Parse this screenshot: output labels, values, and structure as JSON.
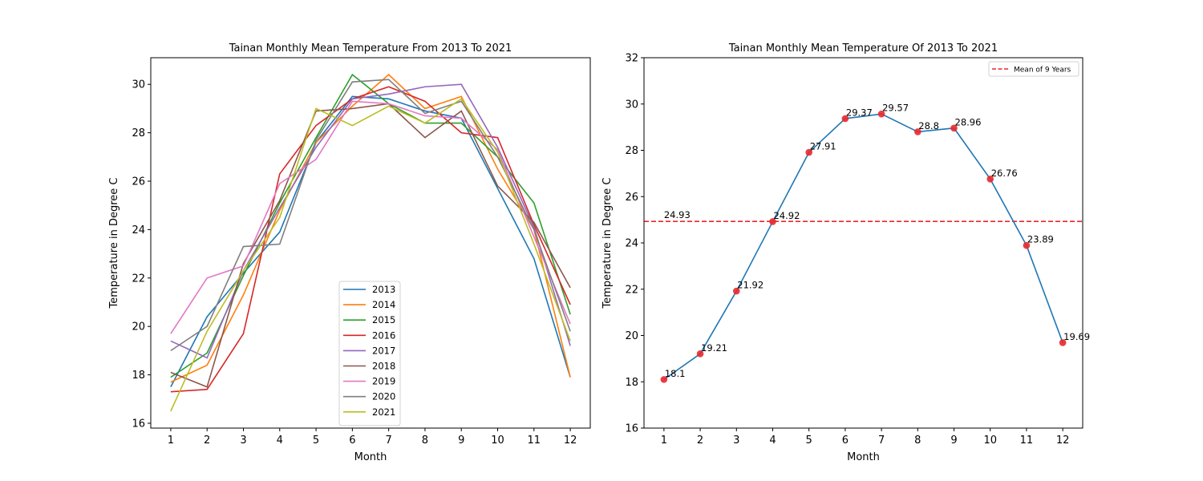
{
  "chart_data": [
    {
      "type": "line",
      "title": "Tainan Monthly Mean Temperature From 2013 To 2021",
      "xlabel": "Month",
      "ylabel": "Temperature in Degree C",
      "xlim": [
        0.45,
        12.55
      ],
      "ylim": [
        15.8,
        31.1
      ],
      "xticks": [
        1,
        2,
        3,
        4,
        5,
        6,
        7,
        8,
        9,
        10,
        11,
        12
      ],
      "yticks": [
        16,
        18,
        20,
        22,
        24,
        26,
        28,
        30
      ],
      "legend": "lower-center",
      "grid": false,
      "x": [
        1,
        2,
        3,
        4,
        5,
        6,
        7,
        8,
        9,
        10,
        11,
        12
      ],
      "series": [
        {
          "name": "2013",
          "color": "#1f77b4",
          "values": [
            17.5,
            20.4,
            22.2,
            23.9,
            27.6,
            29.5,
            29.4,
            28.9,
            28.6,
            25.7,
            22.8,
            17.9
          ]
        },
        {
          "name": "2014",
          "color": "#ff7f0e",
          "values": [
            17.7,
            18.4,
            21.3,
            24.8,
            27.6,
            29.1,
            30.4,
            29.0,
            29.5,
            26.5,
            24.0,
            17.9
          ]
        },
        {
          "name": "2015",
          "color": "#2ca02c",
          "values": [
            17.9,
            18.9,
            22.1,
            25.1,
            27.8,
            30.4,
            29.2,
            28.4,
            28.4,
            27.0,
            25.1,
            20.5
          ]
        },
        {
          "name": "2016",
          "color": "#d62728",
          "values": [
            17.3,
            17.4,
            19.7,
            26.3,
            28.3,
            29.4,
            29.9,
            29.3,
            28.0,
            27.8,
            24.2,
            20.9
          ]
        },
        {
          "name": "2017",
          "color": "#9467bd",
          "values": [
            19.4,
            18.7,
            22.3,
            24.9,
            27.4,
            29.4,
            29.6,
            29.9,
            30.0,
            27.4,
            24.1,
            19.2
          ]
        },
        {
          "name": "2018",
          "color": "#8c564b",
          "values": [
            18.1,
            17.5,
            22.6,
            25.2,
            28.9,
            29.0,
            29.2,
            27.8,
            28.9,
            25.8,
            24.3,
            21.6
          ]
        },
        {
          "name": "2019",
          "color": "#e377c2",
          "values": [
            19.7,
            22.0,
            22.5,
            25.9,
            26.9,
            29.3,
            29.2,
            28.7,
            28.6,
            27.3,
            23.7,
            20.1
          ]
        },
        {
          "name": "2020",
          "color": "#7f7f7f",
          "values": [
            19.0,
            20.0,
            23.3,
            23.4,
            27.7,
            30.1,
            30.2,
            28.8,
            29.3,
            27.0,
            24.0,
            19.8
          ]
        },
        {
          "name": "2021",
          "color": "#bcbd22",
          "values": [
            16.5,
            19.8,
            22.3,
            24.5,
            29.0,
            28.3,
            29.1,
            28.4,
            29.4,
            27.2,
            23.4,
            19.4
          ]
        }
      ]
    },
    {
      "type": "line",
      "title": "Tainan Monthly Mean Temperature Of 2013 To 2021",
      "xlabel": "Month",
      "ylabel": "Temperature in Degree C",
      "xlim": [
        0.45,
        12.55
      ],
      "ylim": [
        16,
        32
      ],
      "xticks": [
        1,
        2,
        3,
        4,
        5,
        6,
        7,
        8,
        9,
        10,
        11,
        12
      ],
      "yticks": [
        16,
        18,
        20,
        22,
        24,
        26,
        28,
        30,
        32
      ],
      "legend": "top-right",
      "grid": false,
      "x": [
        1,
        2,
        3,
        4,
        5,
        6,
        7,
        8,
        9,
        10,
        11,
        12
      ],
      "line_color": "#1f77b4",
      "marker_color": "#e8282c",
      "values": [
        18.1,
        19.21,
        21.92,
        24.92,
        27.91,
        29.37,
        29.57,
        28.8,
        28.96,
        26.76,
        23.89,
        19.69
      ],
      "labels": [
        "18.1",
        "19.21",
        "21.92",
        "24.92",
        "27.91",
        "29.37",
        "29.57",
        "28.8",
        "28.96",
        "26.76",
        "23.89",
        "19.69"
      ],
      "mean_line": {
        "name": "Mean of 9 Years",
        "value": 24.93,
        "label": "24.93",
        "color": "#e8282c"
      }
    }
  ]
}
